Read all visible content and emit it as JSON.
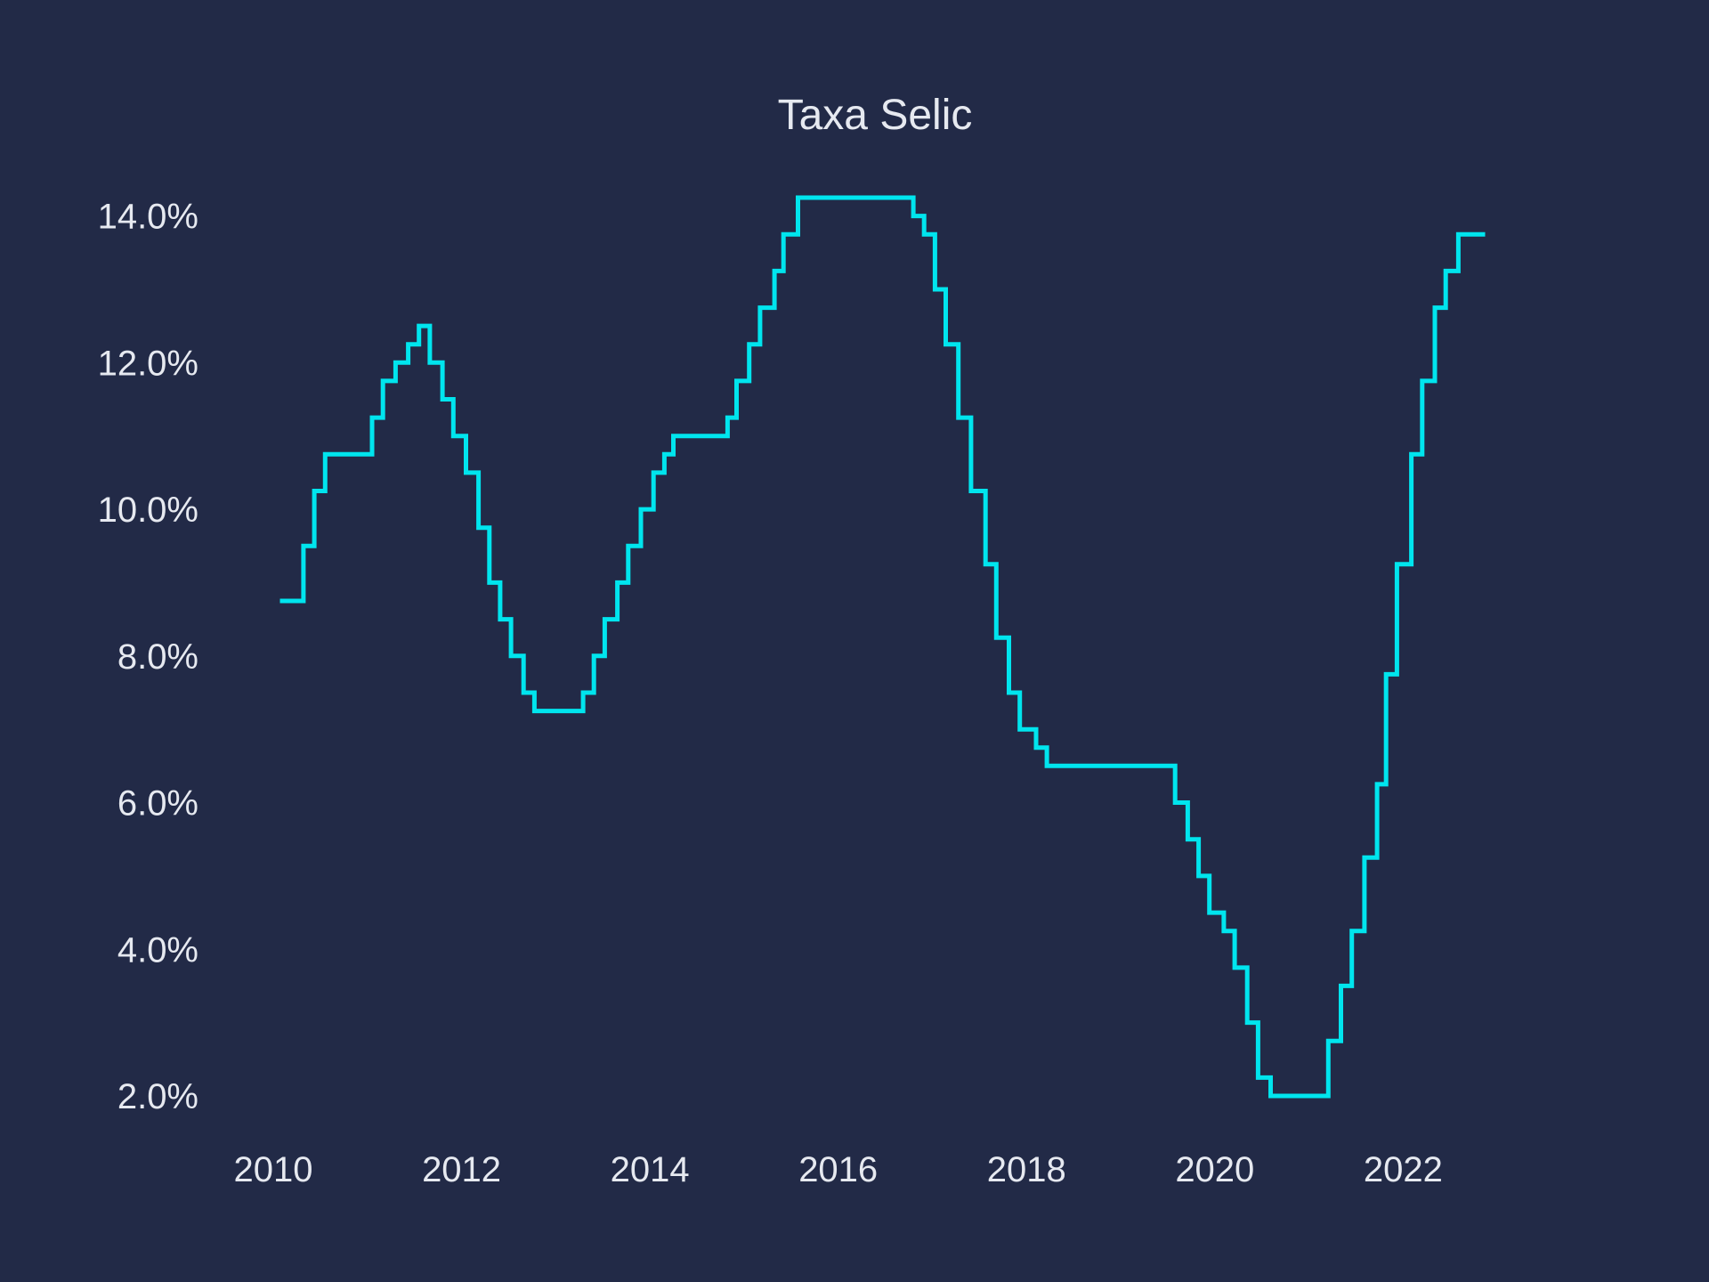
{
  "chart_data": {
    "type": "line",
    "title": "Taxa Selic",
    "xlabel": "",
    "ylabel": "",
    "step": "post",
    "grid": false,
    "legend": "none",
    "x_ticks": [
      "2010",
      "2012",
      "2014",
      "2016",
      "2018",
      "2020",
      "2022"
    ],
    "y_ticks": [
      "2.0%",
      "4.0%",
      "6.0%",
      "8.0%",
      "10.0%",
      "12.0%",
      "14.0%"
    ],
    "xlim": [
      2010,
      2022.8
    ],
    "ylim": [
      2.0,
      14.25
    ],
    "colors": {
      "background": "#222a47",
      "line": "#00e5ee",
      "text": "#e6e9f0"
    },
    "series": [
      {
        "x": [
          "2010-01-27",
          "2010-04-28",
          "2010-06-09",
          "2010-07-21",
          "2011-01-19",
          "2011-03-02",
          "2011-04-20",
          "2011-06-08",
          "2011-07-20",
          "2011-08-31",
          "2011-10-19",
          "2011-11-30",
          "2012-01-18",
          "2012-03-07",
          "2012-04-18",
          "2012-05-30",
          "2012-07-11",
          "2012-08-29",
          "2012-10-10",
          "2013-04-17",
          "2013-05-29",
          "2013-07-10",
          "2013-08-28",
          "2013-10-09",
          "2013-11-27",
          "2014-01-15",
          "2014-02-26",
          "2014-04-02",
          "2014-10-29",
          "2014-12-03",
          "2015-01-21",
          "2015-03-04",
          "2015-04-29",
          "2015-06-03",
          "2015-07-29",
          "2016-10-19",
          "2016-11-30",
          "2017-01-11",
          "2017-02-22",
          "2017-04-12",
          "2017-05-31",
          "2017-07-26",
          "2017-09-06",
          "2017-10-25",
          "2017-12-06",
          "2018-02-07",
          "2018-03-21",
          "2019-07-31",
          "2019-09-18",
          "2019-10-30",
          "2019-12-11",
          "2020-02-05",
          "2020-03-18",
          "2020-05-06",
          "2020-06-17",
          "2020-08-05",
          "2021-03-17",
          "2021-05-05",
          "2021-06-16",
          "2021-08-04",
          "2021-09-22",
          "2021-10-27",
          "2021-12-08",
          "2022-02-02",
          "2022-03-16",
          "2022-05-04",
          "2022-06-15",
          "2022-08-03",
          "2022-11-15"
        ],
        "y": [
          8.75,
          9.5,
          10.25,
          10.75,
          11.25,
          11.75,
          12.0,
          12.25,
          12.5,
          12.0,
          11.5,
          11.0,
          10.5,
          9.75,
          9.0,
          8.5,
          8.0,
          7.5,
          7.25,
          7.5,
          8.0,
          8.5,
          9.0,
          9.5,
          10.0,
          10.5,
          10.75,
          11.0,
          11.25,
          11.75,
          12.25,
          12.75,
          13.25,
          13.75,
          14.25,
          14.0,
          13.75,
          13.0,
          12.25,
          11.25,
          10.25,
          9.25,
          8.25,
          7.5,
          7.0,
          6.75,
          6.5,
          6.0,
          5.5,
          5.0,
          4.5,
          4.25,
          3.75,
          3.0,
          2.25,
          2.0,
          2.75,
          3.5,
          4.25,
          5.25,
          6.25,
          7.75,
          9.25,
          10.75,
          11.75,
          12.75,
          13.25,
          13.75,
          13.75
        ]
      }
    ]
  }
}
